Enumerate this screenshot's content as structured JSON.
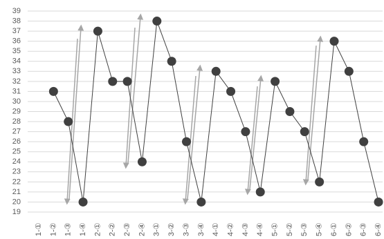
{
  "chart_data": {
    "type": "line",
    "categories": [
      "1-①",
      "1-②",
      "1-③",
      "1-④",
      "2-①",
      "2-②",
      "2-③",
      "2-④",
      "3-①",
      "3-②",
      "3-③",
      "3-④",
      "4-①",
      "4-②",
      "4-③",
      "4-④",
      "5-①",
      "5-②",
      "5-③",
      "5-④",
      "6-①",
      "6-②",
      "6-③",
      "6-④"
    ],
    "values": [
      null,
      31,
      28,
      20,
      37,
      32,
      32,
      24,
      38,
      34,
      26,
      20,
      33,
      31,
      27,
      21,
      32,
      29,
      27,
      22,
      36,
      33,
      26,
      20
    ],
    "color": "#404040",
    "ylim": [
      19,
      39
    ],
    "yticks": [
      19,
      20,
      21,
      22,
      23,
      24,
      25,
      26,
      27,
      28,
      29,
      30,
      31,
      32,
      33,
      34,
      35,
      36,
      37,
      38,
      39
    ],
    "grid": true
  }
}
